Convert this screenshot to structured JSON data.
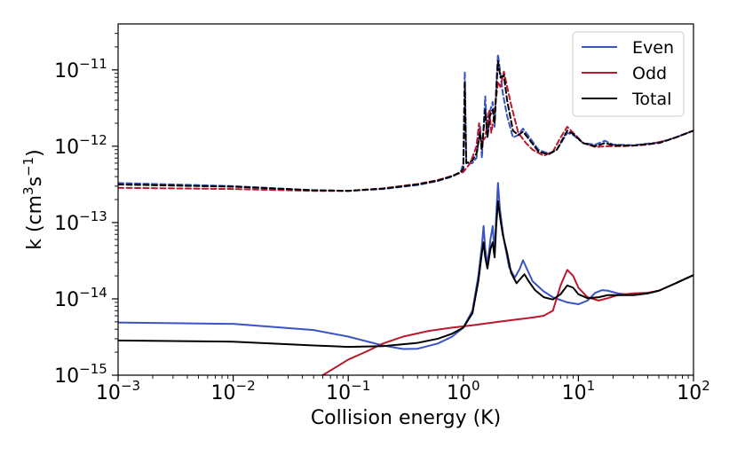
{
  "chart_data": {
    "type": "line",
    "xlabel": "Collision energy (K)",
    "ylabel_main": "k (cm",
    "ylabel_sup1": "3",
    "ylabel_mid": "s",
    "ylabel_sup2": "−1",
    "ylabel_end": ")",
    "xscale": "log",
    "yscale": "log",
    "xlim": [
      0.001,
      100
    ],
    "ylim": [
      1e-15,
      4e-11
    ],
    "xticks": [
      {
        "value": 0.001,
        "base": "10",
        "exp": "−3"
      },
      {
        "value": 0.01,
        "base": "10",
        "exp": "−2"
      },
      {
        "value": 0.1,
        "base": "10",
        "exp": "−1"
      },
      {
        "value": 1,
        "base": "10",
        "exp": "0"
      },
      {
        "value": 10,
        "base": "10",
        "exp": "1"
      },
      {
        "value": 100,
        "base": "10",
        "exp": "2"
      }
    ],
    "yticks": [
      {
        "value": 1e-15,
        "base": "10",
        "exp": "−15"
      },
      {
        "value": 1e-14,
        "base": "10",
        "exp": "−14"
      },
      {
        "value": 1e-13,
        "base": "10",
        "exp": "−13"
      },
      {
        "value": 1e-12,
        "base": "10",
        "exp": "−12"
      },
      {
        "value": 1e-11,
        "base": "10",
        "exp": "−11"
      }
    ],
    "legend_position": "top-right",
    "series": [
      {
        "name": "Even",
        "color": "#3a53c5",
        "dash": "solid",
        "show_in_legend": true,
        "points": [
          [
            0.001,
            4.9e-15
          ],
          [
            0.01,
            4.7e-15
          ],
          [
            0.05,
            3.9e-15
          ],
          [
            0.1,
            3.2e-15
          ],
          [
            0.2,
            2.45e-15
          ],
          [
            0.3,
            2.2e-15
          ],
          [
            0.4,
            2.22e-15
          ],
          [
            0.6,
            2.6e-15
          ],
          [
            0.8,
            3.2e-15
          ],
          [
            1.0,
            4.2e-15
          ],
          [
            1.2,
            7e-15
          ],
          [
            1.35,
            2e-14
          ],
          [
            1.45,
            5e-14
          ],
          [
            1.5,
            9e-14
          ],
          [
            1.55,
            4.5e-14
          ],
          [
            1.62,
            2.8e-14
          ],
          [
            1.72,
            6e-14
          ],
          [
            1.8,
            9e-14
          ],
          [
            1.87,
            4e-14
          ],
          [
            1.93,
            1.2e-13
          ],
          [
            2.0,
            3.3e-13
          ],
          [
            2.08,
            1.5e-13
          ],
          [
            2.15,
            1e-13
          ],
          [
            2.25,
            6e-14
          ],
          [
            2.5,
            2.6e-14
          ],
          [
            2.8,
            1.9e-14
          ],
          [
            3.1,
            2.5e-14
          ],
          [
            3.3,
            3.2e-14
          ],
          [
            3.6,
            2.4e-14
          ],
          [
            4.0,
            1.7e-14
          ],
          [
            5,
            1.25e-14
          ],
          [
            6,
            1.05e-14
          ],
          [
            8,
            9e-15
          ],
          [
            10,
            8.5e-15
          ],
          [
            12,
            9.5e-15
          ],
          [
            14,
            1.2e-14
          ],
          [
            16,
            1.3e-14
          ],
          [
            18,
            1.28e-14
          ],
          [
            22,
            1.18e-14
          ],
          [
            30,
            1.12e-14
          ],
          [
            40,
            1.18e-14
          ],
          [
            50,
            1.28e-14
          ],
          [
            70,
            1.6e-14
          ],
          [
            100,
            2.05e-14
          ]
        ]
      },
      {
        "name": "Odd",
        "color": "#b9182e",
        "dash": "solid",
        "show_in_legend": true,
        "points": [
          [
            0.06,
            1e-15
          ],
          [
            0.08,
            1.3e-15
          ],
          [
            0.1,
            1.6e-15
          ],
          [
            0.15,
            2.1e-15
          ],
          [
            0.2,
            2.6e-15
          ],
          [
            0.3,
            3.2e-15
          ],
          [
            0.5,
            3.8e-15
          ],
          [
            0.8,
            4.2e-15
          ],
          [
            1.2,
            4.5e-15
          ],
          [
            2,
            5e-15
          ],
          [
            3,
            5.4e-15
          ],
          [
            4,
            5.7e-15
          ],
          [
            5,
            6e-15
          ],
          [
            6,
            7e-15
          ],
          [
            7,
            1.5e-14
          ],
          [
            8,
            2.4e-14
          ],
          [
            9,
            2e-14
          ],
          [
            10,
            1.4e-14
          ],
          [
            12,
            1.05e-14
          ],
          [
            15,
            9.5e-15
          ],
          [
            18,
            1.02e-14
          ],
          [
            22,
            1.12e-14
          ],
          [
            30,
            1.18e-14
          ],
          [
            40,
            1.2e-14
          ],
          [
            50,
            1.28e-14
          ],
          [
            70,
            1.6e-14
          ],
          [
            100,
            2.05e-14
          ]
        ]
      },
      {
        "name": "Total",
        "color": "#000000",
        "dash": "solid",
        "show_in_legend": true,
        "points": [
          [
            0.001,
            2.85e-15
          ],
          [
            0.01,
            2.75e-15
          ],
          [
            0.05,
            2.45e-15
          ],
          [
            0.1,
            2.35e-15
          ],
          [
            0.2,
            2.4e-15
          ],
          [
            0.4,
            2.65e-15
          ],
          [
            0.6,
            3e-15
          ],
          [
            0.8,
            3.5e-15
          ],
          [
            1.0,
            4.2e-15
          ],
          [
            1.2,
            6.5e-15
          ],
          [
            1.35,
            1.7e-14
          ],
          [
            1.45,
            4e-14
          ],
          [
            1.5,
            5.5e-14
          ],
          [
            1.55,
            3.5e-14
          ],
          [
            1.62,
            2.5e-14
          ],
          [
            1.72,
            4.5e-14
          ],
          [
            1.8,
            5.5e-14
          ],
          [
            1.87,
            3.5e-14
          ],
          [
            1.93,
            9e-14
          ],
          [
            2.0,
            1.9e-13
          ],
          [
            2.1,
            1.1e-13
          ],
          [
            2.2,
            7e-14
          ],
          [
            2.4,
            4e-14
          ],
          [
            2.6,
            2.2e-14
          ],
          [
            2.9,
            1.6e-14
          ],
          [
            3.2,
            1.9e-14
          ],
          [
            3.4,
            2.1e-14
          ],
          [
            3.7,
            1.7e-14
          ],
          [
            4.2,
            1.3e-14
          ],
          [
            5,
            1.05e-14
          ],
          [
            6,
            9.8e-15
          ],
          [
            7,
            1.15e-14
          ],
          [
            8,
            1.5e-14
          ],
          [
            9,
            1.4e-14
          ],
          [
            10,
            1.15e-14
          ],
          [
            12,
            1.02e-14
          ],
          [
            15,
            1.05e-14
          ],
          [
            18,
            1.12e-14
          ],
          [
            22,
            1.12e-14
          ],
          [
            30,
            1.12e-14
          ],
          [
            40,
            1.18e-14
          ],
          [
            50,
            1.28e-14
          ],
          [
            70,
            1.6e-14
          ],
          [
            100,
            2.05e-14
          ]
        ]
      },
      {
        "name": "Even (upper)",
        "color": "#3a53c5",
        "dash": "dashed",
        "show_in_legend": false,
        "points": [
          [
            0.001,
            3.3e-13
          ],
          [
            0.01,
            3e-13
          ],
          [
            0.05,
            2.65e-13
          ],
          [
            0.1,
            2.6e-13
          ],
          [
            0.2,
            2.75e-13
          ],
          [
            0.4,
            3.1e-13
          ],
          [
            0.6,
            3.5e-13
          ],
          [
            0.8,
            4e-13
          ],
          [
            0.95,
            4.6e-13
          ],
          [
            1.0,
            6e-13
          ],
          [
            1.03,
            9.5e-12
          ],
          [
            1.06,
            6e-13
          ],
          [
            1.2,
            6e-13
          ],
          [
            1.3,
            7e-13
          ],
          [
            1.4,
            1.8e-12
          ],
          [
            1.45,
            7e-13
          ],
          [
            1.55,
            4.5e-12
          ],
          [
            1.62,
            1.3e-12
          ],
          [
            1.72,
            3e-12
          ],
          [
            1.8,
            3.8e-12
          ],
          [
            1.87,
            1.8e-12
          ],
          [
            1.95,
            8e-12
          ],
          [
            2.0,
            1.6e-11
          ],
          [
            2.08,
            1e-11
          ],
          [
            2.2,
            5e-12
          ],
          [
            2.4,
            2.5e-12
          ],
          [
            2.7,
            1.3e-12
          ],
          [
            3.0,
            1.4e-12
          ],
          [
            3.3,
            1.7e-12
          ],
          [
            3.7,
            1.35e-12
          ],
          [
            4.5,
            9e-13
          ],
          [
            5.5,
            8e-13
          ],
          [
            6.5,
            9e-13
          ],
          [
            8,
            1.5e-12
          ],
          [
            9,
            1.4e-12
          ],
          [
            11,
            1.1e-12
          ],
          [
            14,
            1.05e-12
          ],
          [
            17,
            1.18e-12
          ],
          [
            20,
            1.05e-12
          ],
          [
            30,
            1.03e-12
          ],
          [
            50,
            1.12e-12
          ],
          [
            70,
            1.3e-12
          ],
          [
            100,
            1.6e-12
          ]
        ]
      },
      {
        "name": "Odd (upper)",
        "color": "#b9182e",
        "dash": "dashed",
        "show_in_legend": false,
        "points": [
          [
            0.001,
            2.85e-13
          ],
          [
            0.01,
            2.75e-13
          ],
          [
            0.05,
            2.6e-13
          ],
          [
            0.1,
            2.6e-13
          ],
          [
            0.2,
            2.8e-13
          ],
          [
            0.4,
            3.2e-13
          ],
          [
            0.6,
            3.6e-13
          ],
          [
            0.8,
            4.1e-13
          ],
          [
            1.0,
            4.6e-13
          ],
          [
            1.15,
            6e-13
          ],
          [
            1.3,
            1e-12
          ],
          [
            1.37,
            2e-12
          ],
          [
            1.43,
            1.1e-12
          ],
          [
            1.55,
            1.3e-12
          ],
          [
            1.68,
            3e-12
          ],
          [
            1.75,
            1.5e-12
          ],
          [
            1.85,
            2.5e-12
          ],
          [
            2.0,
            7e-12
          ],
          [
            2.1,
            6e-12
          ],
          [
            2.25,
            9.5e-12
          ],
          [
            2.35,
            7e-12
          ],
          [
            2.6,
            3.5e-12
          ],
          [
            3.0,
            1.5e-12
          ],
          [
            3.5,
            1.1e-12
          ],
          [
            4,
            9e-13
          ],
          [
            5,
            7.5e-13
          ],
          [
            6,
            8.5e-13
          ],
          [
            7,
            1.3e-12
          ],
          [
            8,
            1.8e-12
          ],
          [
            9,
            1.5e-12
          ],
          [
            11,
            1.1e-12
          ],
          [
            14,
            9.8e-13
          ],
          [
            18,
            1e-12
          ],
          [
            25,
            1e-12
          ],
          [
            40,
            1.05e-12
          ],
          [
            60,
            1.2e-12
          ],
          [
            100,
            1.6e-12
          ]
        ]
      },
      {
        "name": "Total (upper)",
        "color": "#000000",
        "dash": "dashed",
        "show_in_legend": false,
        "points": [
          [
            0.001,
            3.15e-13
          ],
          [
            0.01,
            2.95e-13
          ],
          [
            0.05,
            2.65e-13
          ],
          [
            0.1,
            2.6e-13
          ],
          [
            0.2,
            2.78e-13
          ],
          [
            0.4,
            3.15e-13
          ],
          [
            0.6,
            3.55e-13
          ],
          [
            0.8,
            4.05e-13
          ],
          [
            0.95,
            4.6e-13
          ],
          [
            1.0,
            5e-13
          ],
          [
            1.03,
            7e-12
          ],
          [
            1.06,
            6e-13
          ],
          [
            1.2,
            6.5e-13
          ],
          [
            1.3,
            8e-13
          ],
          [
            1.4,
            1.5e-12
          ],
          [
            1.45,
            9e-13
          ],
          [
            1.55,
            3e-12
          ],
          [
            1.62,
            1.3e-12
          ],
          [
            1.7,
            2.5e-12
          ],
          [
            1.8,
            3e-12
          ],
          [
            1.87,
            2e-12
          ],
          [
            1.95,
            7e-12
          ],
          [
            2.0,
            1.3e-11
          ],
          [
            2.1,
            8e-12
          ],
          [
            2.25,
            8.5e-12
          ],
          [
            2.4,
            4e-12
          ],
          [
            2.7,
            1.6e-12
          ],
          [
            3.0,
            1.4e-12
          ],
          [
            3.3,
            1.55e-12
          ],
          [
            3.7,
            1.25e-12
          ],
          [
            4.5,
            8.5e-13
          ],
          [
            5.5,
            7.8e-13
          ],
          [
            6.5,
            9e-13
          ],
          [
            8,
            1.6e-12
          ],
          [
            9,
            1.45e-12
          ],
          [
            11,
            1.1e-12
          ],
          [
            14,
            1e-12
          ],
          [
            17,
            1.1e-12
          ],
          [
            20,
            1.03e-12
          ],
          [
            30,
            1.02e-12
          ],
          [
            50,
            1.1e-12
          ],
          [
            70,
            1.3e-12
          ],
          [
            100,
            1.6e-12
          ]
        ]
      }
    ]
  }
}
